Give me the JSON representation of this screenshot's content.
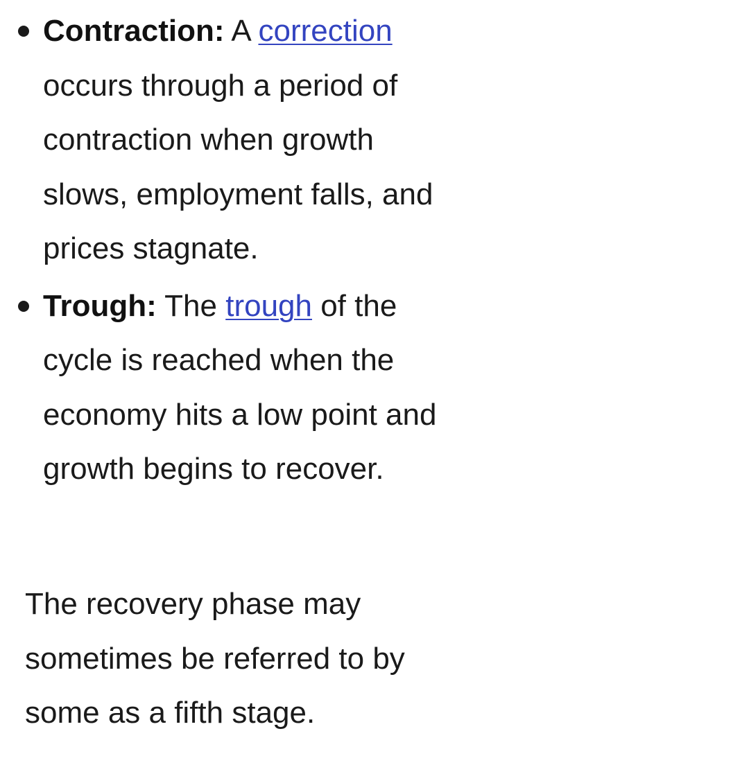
{
  "phases": [
    {
      "term": "Contraction:",
      "before": " A ",
      "link": "correction",
      "after": " occurs through a period of contraction when growth slows, employment falls, and prices stagnate."
    },
    {
      "term": "Trough:",
      "before": " The ",
      "link": "trough",
      "after": " of the cycle is reached when the economy hits a low point and growth begins to recover."
    }
  ],
  "note": "The recovery phase may sometimes be referred to by some as a fifth stage.",
  "colors": {
    "text": "#1a1a1a",
    "link": "#3344c0",
    "background": "#ffffff"
  }
}
